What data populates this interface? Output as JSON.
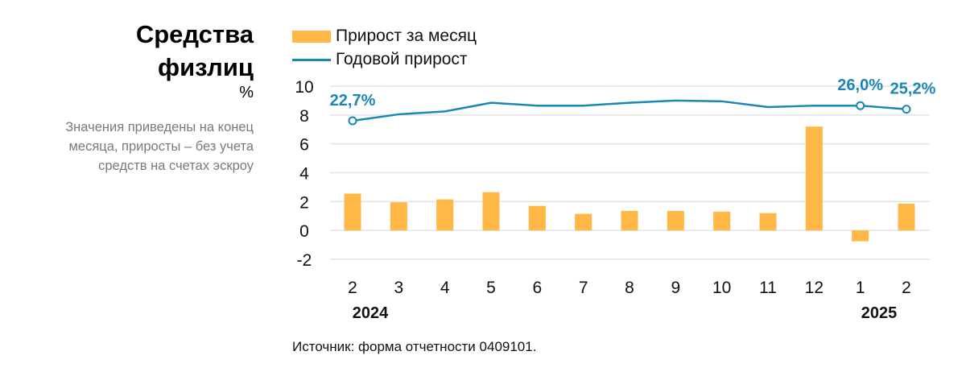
{
  "title_line1": "Средства",
  "title_line2": "физлиц",
  "unit": "%",
  "note": [
    "Значения приведены на конец",
    "месяца, приросты – без учета",
    "средств на счетах эскроу"
  ],
  "source": "Источник: форма отчетности 0409101.",
  "colors": {
    "bar": "#FFB845",
    "line": "#1B87B8",
    "grid": "#E3E3E3"
  },
  "chart_data": {
    "type": "bar+line",
    "legend": [
      "Прирост за месяц",
      "Годовой прирост"
    ],
    "legend_placement": "top-left",
    "categories": [
      "2",
      "3",
      "4",
      "5",
      "6",
      "7",
      "8",
      "9",
      "10",
      "11",
      "12",
      "1",
      "2"
    ],
    "year_labels": [
      {
        "label": "2024",
        "category_index": 0
      },
      {
        "label": "2025",
        "category_index": 12
      }
    ],
    "yticks": [
      "10",
      "8",
      "6",
      "4",
      "2",
      "0",
      "-2"
    ],
    "ylim": [
      -2,
      10
    ],
    "grid": true,
    "series": [
      {
        "name": "Прирост за месяц",
        "type": "bar",
        "values": [
          2.55,
          1.95,
          2.15,
          2.65,
          1.7,
          1.15,
          1.35,
          1.35,
          1.3,
          1.2,
          7.2,
          -0.75,
          1.85
        ]
      },
      {
        "name": "Годовой прирост",
        "type": "line",
        "plotted_values": [
          7.6,
          8.05,
          8.25,
          8.85,
          8.65,
          8.65,
          8.85,
          9.0,
          8.95,
          8.55,
          8.65,
          8.65,
          8.4
        ],
        "annotations": [
          {
            "index": 0,
            "label": "22,7%"
          },
          {
            "index": 11,
            "label": "26,0%"
          },
          {
            "index": 12,
            "label": "25,2%"
          }
        ]
      }
    ]
  }
}
